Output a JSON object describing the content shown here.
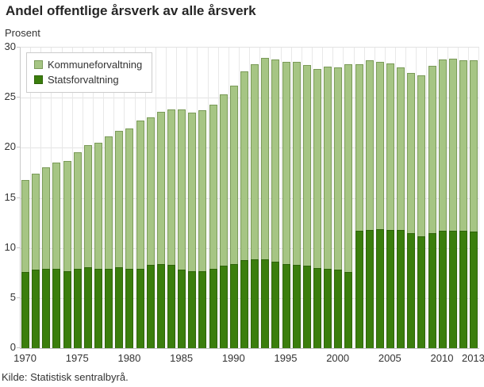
{
  "title": "Andel offentlige årsverk av alle årsverk",
  "y_axis_title": "Prosent",
  "source": "Kilde: Statistisk sentralbyrå.",
  "legend": {
    "items": [
      {
        "label": "Kommuneforvaltning",
        "color": "#a6c584"
      },
      {
        "label": "Statsforvaltning",
        "color": "#3b7e0d"
      }
    ]
  },
  "colors": {
    "kommune_fill": "#a6c584",
    "kommune_border": "#7a9a58",
    "stats_fill": "#3b7e0d",
    "stats_border": "#2e6309",
    "gridline": "#e3e3e3",
    "axis": "#c9c9c9",
    "text": "#333333"
  },
  "chart_data": {
    "type": "bar",
    "stacked": true,
    "title": "Andel offentlige årsverk av alle årsverk",
    "ylabel": "Prosent",
    "xlabel": "",
    "ylim": [
      0,
      30
    ],
    "yticks": [
      0,
      5,
      10,
      15,
      20,
      25,
      30
    ],
    "xticks": [
      1970,
      1975,
      1980,
      1985,
      1990,
      1995,
      2000,
      2005,
      2010,
      2013
    ],
    "grid": true,
    "legend_position": "top-left-inside",
    "categories": [
      1970,
      1971,
      1972,
      1973,
      1974,
      1975,
      1976,
      1977,
      1978,
      1979,
      1980,
      1981,
      1982,
      1983,
      1984,
      1985,
      1986,
      1987,
      1988,
      1989,
      1990,
      1991,
      1992,
      1993,
      1994,
      1995,
      1996,
      1997,
      1998,
      1999,
      2000,
      2001,
      2002,
      2003,
      2004,
      2005,
      2006,
      2007,
      2008,
      2009,
      2010,
      2011,
      2012,
      2013
    ],
    "series": [
      {
        "name": "Statsforvaltning",
        "color": "#3b7e0d",
        "values": [
          7.6,
          7.8,
          7.9,
          7.9,
          7.7,
          7.9,
          8.1,
          7.9,
          7.9,
          8.1,
          7.9,
          7.9,
          8.3,
          8.4,
          8.3,
          7.8,
          7.7,
          7.7,
          7.9,
          8.2,
          8.4,
          8.8,
          8.9,
          8.9,
          8.6,
          8.4,
          8.3,
          8.2,
          8.0,
          7.9,
          7.8,
          7.6,
          11.7,
          11.8,
          11.9,
          11.8,
          11.8,
          11.5,
          11.2,
          11.5,
          11.7,
          11.7,
          11.7,
          11.6
        ]
      },
      {
        "name": "Kommuneforvaltning",
        "color": "#a6c584",
        "values": [
          9.2,
          9.6,
          10.1,
          10.6,
          11.0,
          11.6,
          12.2,
          12.6,
          13.2,
          13.6,
          14.0,
          14.8,
          14.7,
          15.2,
          15.5,
          16.0,
          15.8,
          16.1,
          16.4,
          17.1,
          17.8,
          18.8,
          19.5,
          20.1,
          20.2,
          20.2,
          20.3,
          20.0,
          19.9,
          20.2,
          20.2,
          20.7,
          16.6,
          16.9,
          16.7,
          16.6,
          16.2,
          16.0,
          16.1,
          16.7,
          17.1,
          17.2,
          17.0,
          17.1
        ]
      }
    ]
  }
}
